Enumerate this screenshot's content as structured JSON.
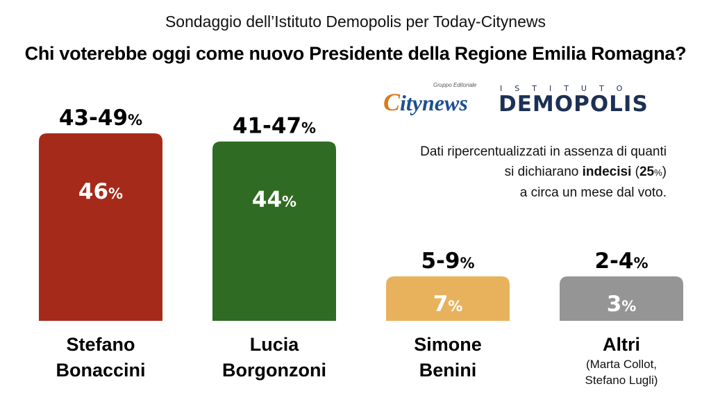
{
  "header": {
    "subtitle": "Sondaggio dell’Istituto Demopolis per Today-Citynews",
    "title": "Chi voterebbe oggi come nuovo Presidente della Regione Emilia Romagna?"
  },
  "logos": {
    "citynews_small": "Gruppo Editoriale",
    "citynews_c": "C",
    "citynews_rest": "itynews",
    "demopolis_top": "ISTITUTO",
    "demopolis": "DEMOPOLIS"
  },
  "note": {
    "line1": "Dati ripercentualizzati in assenza di quanti",
    "line2_pre": "si dichiarano ",
    "line2_bold": "indecisi",
    "line2_open": " (",
    "line2_num": "25",
    "line2_pct": "%",
    "line2_close": ")",
    "line3": "a circa un mese dal voto."
  },
  "chart_data": {
    "type": "bar",
    "categories": [
      "Stefano Bonaccini",
      "Lucia Borgonzoni",
      "Simone Benini",
      "Altri"
    ],
    "values": [
      46,
      44,
      7,
      3
    ],
    "ranges": [
      "43-49",
      "41-47",
      "5-9",
      "2-4"
    ],
    "unit": "%",
    "labels": [
      {
        "lines": [
          "Stefano",
          "Bonaccini"
        ],
        "sub": []
      },
      {
        "lines": [
          "Lucia",
          "Borgonzoni"
        ],
        "sub": []
      },
      {
        "lines": [
          "Simone",
          "Benini"
        ],
        "sub": []
      },
      {
        "lines": [
          "Altri"
        ],
        "sub": [
          "(Marta Collot,",
          "Stefano Lugli)"
        ]
      }
    ],
    "colors": [
      "#a62a1a",
      "#2f6b22",
      "#e8b25d",
      "#959595"
    ],
    "ylim": [
      0,
      60
    ]
  }
}
